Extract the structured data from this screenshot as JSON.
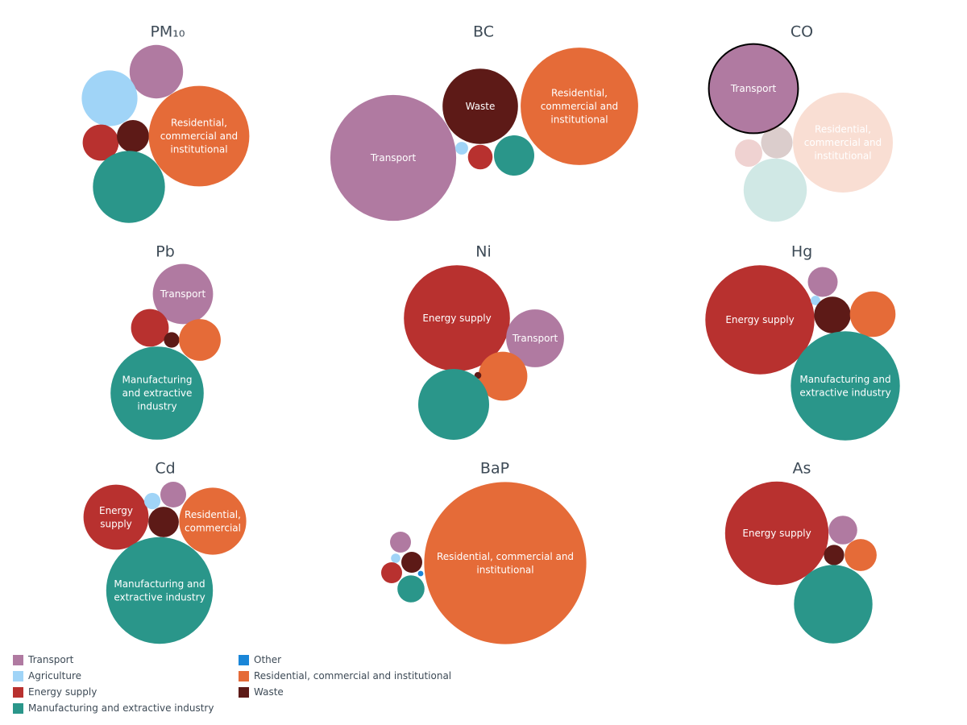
{
  "chart_data": {
    "type": "bubble",
    "categories": {
      "transport": {
        "name": "Transport",
        "color": "#b07aa1"
      },
      "agriculture": {
        "name": "Agriculture",
        "color": "#a0d4f7"
      },
      "energy": {
        "name": "Energy supply",
        "color": "#b8312f"
      },
      "manufacturing": {
        "name": "Manufacturing and extractive industry",
        "color": "#2a968a"
      },
      "other": {
        "name": "Other",
        "color": "#1a86d8"
      },
      "residential": {
        "name": "Residential, commercial and institutional",
        "color": "#e56b38"
      },
      "waste": {
        "name": "Waste",
        "color": "#5d1a17"
      }
    },
    "legend_order": [
      "transport",
      "agriculture",
      "energy",
      "manufacturing",
      "other",
      "residential",
      "waste"
    ],
    "panels": [
      {
        "title": "PM₁₀",
        "bubbles": [
          {
            "category": "transport",
            "value": 11
          },
          {
            "category": "agriculture",
            "value": 12
          },
          {
            "category": "energy",
            "value": 5
          },
          {
            "category": "waste",
            "value": 4
          },
          {
            "category": "residential",
            "value": 39,
            "label": "Residential,\ncommercial and\ninstitutional"
          },
          {
            "category": "manufacturing",
            "value": 20
          }
        ]
      },
      {
        "title": "BC",
        "bubbles": [
          {
            "category": "transport",
            "value": 39,
            "label": "Transport"
          },
          {
            "category": "waste",
            "value": 14,
            "label": "Waste"
          },
          {
            "category": "residential",
            "value": 34,
            "label": "Residential,\ncommercial and\ninstitutional"
          },
          {
            "category": "agriculture",
            "value": 0.4
          },
          {
            "category": "energy",
            "value": 1.5
          },
          {
            "category": "manufacturing",
            "value": 4
          }
        ]
      },
      {
        "title": "CO",
        "bubbles": [
          {
            "category": "transport",
            "value": 32,
            "label": "Transport"
          },
          {
            "category": "residential",
            "value": 40,
            "label": "Residential,\ncommercial and\ninstitutional"
          },
          {
            "category": "waste",
            "value": 4
          },
          {
            "category": "energy",
            "value": 3
          },
          {
            "category": "manufacturing",
            "value": 16
          }
        ]
      },
      {
        "title": "Pb",
        "bubbles": [
          {
            "category": "transport",
            "value": 23,
            "label": "Transport"
          },
          {
            "category": "energy",
            "value": 9
          },
          {
            "category": "waste",
            "value": 1.5
          },
          {
            "category": "residential",
            "value": 11
          },
          {
            "category": "manufacturing",
            "value": 55,
            "label": "Manufacturing\nand extractive\nindustry"
          }
        ]
      },
      {
        "title": "Ni",
        "bubbles": [
          {
            "category": "energy",
            "value": 47,
            "label": "Energy supply"
          },
          {
            "category": "transport",
            "value": 14,
            "label": "Transport"
          },
          {
            "category": "residential",
            "value": 10
          },
          {
            "category": "waste",
            "value": 0.2
          },
          {
            "category": "manufacturing",
            "value": 21
          }
        ]
      },
      {
        "title": "Hg",
        "bubbles": [
          {
            "category": "energy",
            "value": 40,
            "label": "Energy supply"
          },
          {
            "category": "transport",
            "value": 3
          },
          {
            "category": "agriculture",
            "value": 0.3
          },
          {
            "category": "waste",
            "value": 4.5
          },
          {
            "category": "residential",
            "value": 7
          },
          {
            "category": "manufacturing",
            "value": 40,
            "label": "Manufacturing and\nextractive industry"
          }
        ]
      },
      {
        "title": "Cd",
        "bubbles": [
          {
            "category": "energy",
            "value": 16,
            "label": "Energy\nsupply"
          },
          {
            "category": "agriculture",
            "value": 1
          },
          {
            "category": "transport",
            "value": 2.5
          },
          {
            "category": "waste",
            "value": 3.5
          },
          {
            "category": "residential",
            "value": 17,
            "label": "Residential,\ncommercial"
          },
          {
            "category": "manufacturing",
            "value": 43,
            "label": "Manufacturing and\nextractive industry"
          }
        ]
      },
      {
        "title": "BaP",
        "bubbles": [
          {
            "category": "transport",
            "value": 1.5
          },
          {
            "category": "agriculture",
            "value": 0.3
          },
          {
            "category": "waste",
            "value": 1.5
          },
          {
            "category": "energy",
            "value": 1.5
          },
          {
            "category": "other",
            "value": 0.1
          },
          {
            "category": "manufacturing",
            "value": 2.5
          },
          {
            "category": "residential",
            "value": 90,
            "label": "Residential, commercial and\ninstitutional"
          }
        ]
      },
      {
        "title": "As",
        "bubbles": [
          {
            "category": "energy",
            "value": 52,
            "label": "Energy supply"
          },
          {
            "category": "transport",
            "value": 4
          },
          {
            "category": "waste",
            "value": 2
          },
          {
            "category": "residential",
            "value": 5
          },
          {
            "category": "manufacturing",
            "value": 30
          }
        ]
      }
    ]
  }
}
